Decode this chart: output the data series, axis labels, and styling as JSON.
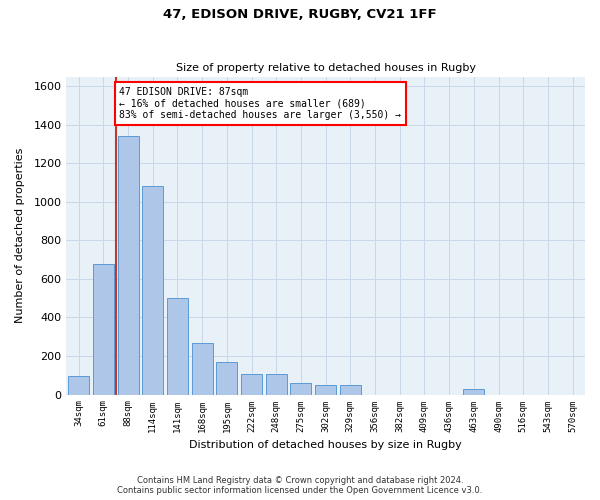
{
  "title1": "47, EDISON DRIVE, RUGBY, CV21 1FF",
  "title2": "Size of property relative to detached houses in Rugby",
  "xlabel": "Distribution of detached houses by size in Rugby",
  "ylabel": "Number of detached properties",
  "annotation_line1": "47 EDISON DRIVE: 87sqm",
  "annotation_line2": "← 16% of detached houses are smaller (689)",
  "annotation_line3": "83% of semi-detached houses are larger (3,550) →",
  "bar_categories": [
    "34sqm",
    "61sqm",
    "88sqm",
    "114sqm",
    "141sqm",
    "168sqm",
    "195sqm",
    "222sqm",
    "248sqm",
    "275sqm",
    "302sqm",
    "329sqm",
    "356sqm",
    "382sqm",
    "409sqm",
    "436sqm",
    "463sqm",
    "490sqm",
    "516sqm",
    "543sqm",
    "570sqm"
  ],
  "bar_values": [
    95,
    680,
    1340,
    1080,
    500,
    270,
    170,
    105,
    105,
    60,
    50,
    50,
    0,
    0,
    0,
    0,
    30,
    0,
    0,
    0,
    0
  ],
  "bar_color": "#aec6e8",
  "bar_edge_color": "#5b9bd5",
  "marker_color": "#c0392b",
  "ylim": [
    0,
    1650
  ],
  "yticks": [
    0,
    200,
    400,
    600,
    800,
    1000,
    1200,
    1400,
    1600
  ],
  "grid_color": "#c8d8e8",
  "bg_color": "#e8f0f8",
  "footer_line1": "Contains HM Land Registry data © Crown copyright and database right 2024.",
  "footer_line2": "Contains public sector information licensed under the Open Government Licence v3.0."
}
